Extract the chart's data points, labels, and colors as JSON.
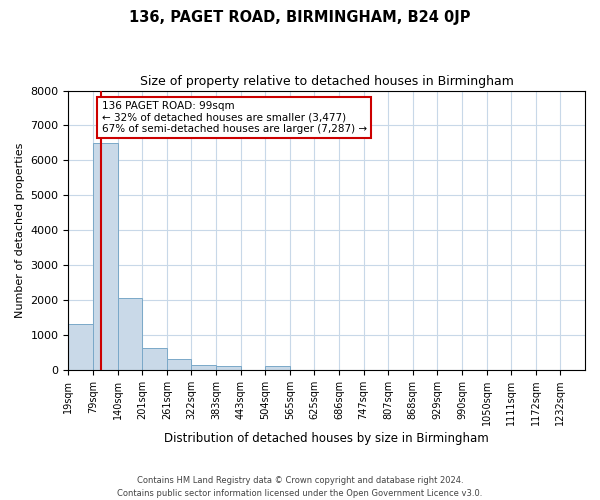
{
  "title": "136, PAGET ROAD, BIRMINGHAM, B24 0JP",
  "subtitle": "Size of property relative to detached houses in Birmingham",
  "xlabel": "Distribution of detached houses by size in Birmingham",
  "ylabel": "Number of detached properties",
  "bin_labels": [
    "19sqm",
    "79sqm",
    "140sqm",
    "201sqm",
    "261sqm",
    "322sqm",
    "383sqm",
    "443sqm",
    "504sqm",
    "565sqm",
    "625sqm",
    "686sqm",
    "747sqm",
    "807sqm",
    "868sqm",
    "929sqm",
    "990sqm",
    "1050sqm",
    "1111sqm",
    "1172sqm",
    "1232sqm"
  ],
  "bar_values": [
    1300,
    6500,
    2050,
    620,
    300,
    130,
    100,
    0,
    100,
    0,
    0,
    0,
    0,
    0,
    0,
    0,
    0,
    0,
    0,
    0,
    0
  ],
  "bar_color": "#c9d9e8",
  "bar_edge_color": "#7aa8c8",
  "bin_edges": [
    19,
    79,
    140,
    201,
    261,
    322,
    383,
    443,
    504,
    565,
    625,
    686,
    747,
    807,
    868,
    929,
    990,
    1050,
    1111,
    1172,
    1232
  ],
  "property_sqm": 99,
  "property_line_color": "#cc0000",
  "annotation_title": "136 PAGET ROAD: 99sqm",
  "annotation_line1": "← 32% of detached houses are smaller (3,477)",
  "annotation_line2": "67% of semi-detached houses are larger (7,287) →",
  "annotation_box_color": "#cc0000",
  "ylim": [
    0,
    8000
  ],
  "yticks": [
    0,
    1000,
    2000,
    3000,
    4000,
    5000,
    6000,
    7000,
    8000
  ],
  "footer_line1": "Contains HM Land Registry data © Crown copyright and database right 2024.",
  "footer_line2": "Contains public sector information licensed under the Open Government Licence v3.0.",
  "background_color": "#ffffff",
  "grid_color": "#c8d8e8"
}
